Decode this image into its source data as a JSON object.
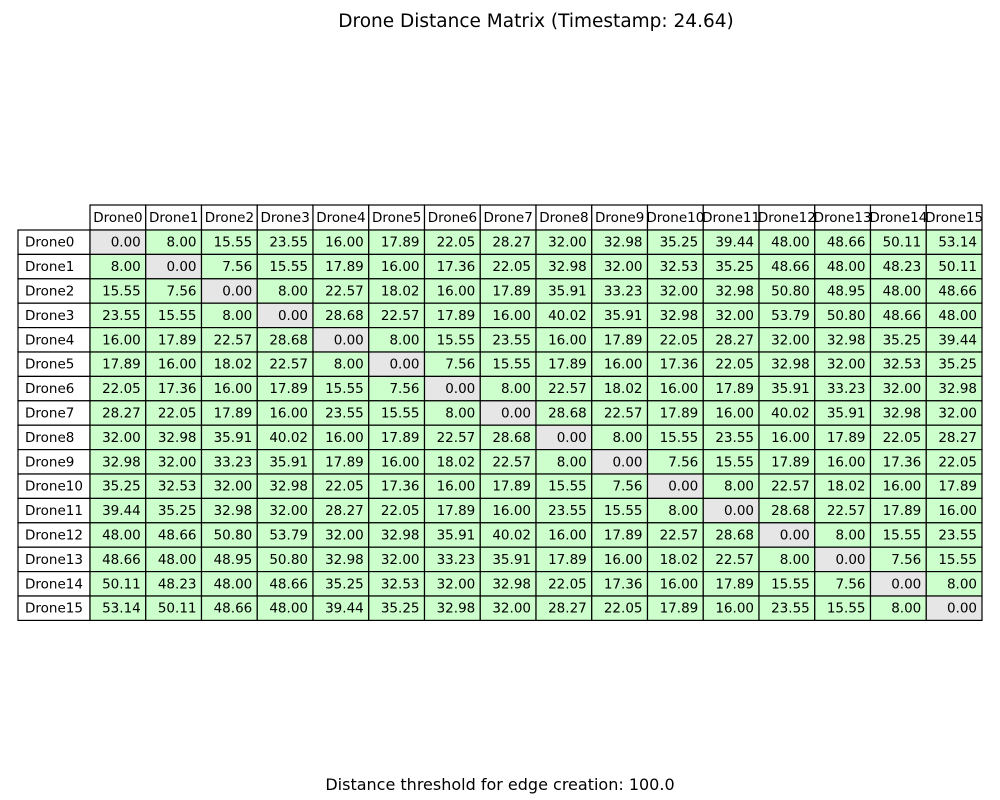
{
  "title": "Drone Distance Matrix (Timestamp: 24.64)",
  "footer": "Distance threshold for edge creation: 100.0",
  "colors": {
    "diagonal_cell": "#e6e6e6",
    "offdiag_cell": "#ccffcc",
    "header_cell": "#ffffff",
    "border": "#000000"
  },
  "chart_data": {
    "type": "table",
    "row_labels": [
      "Drone0",
      "Drone1",
      "Drone2",
      "Drone3",
      "Drone4",
      "Drone5",
      "Drone6",
      "Drone7",
      "Drone8",
      "Drone9",
      "Drone10",
      "Drone11",
      "Drone12",
      "Drone13",
      "Drone14",
      "Drone15"
    ],
    "col_labels": [
      "Drone0",
      "Drone1",
      "Drone2",
      "Drone3",
      "Drone4",
      "Drone5",
      "Drone6",
      "Drone7",
      "Drone8",
      "Drone9",
      "Drone10",
      "Drone11",
      "Drone12",
      "Drone13",
      "Drone14",
      "Drone15"
    ],
    "cells": [
      [
        "0.00",
        "8.00",
        "15.55",
        "23.55",
        "16.00",
        "17.89",
        "22.05",
        "28.27",
        "32.00",
        "32.98",
        "35.25",
        "39.44",
        "48.00",
        "48.66",
        "50.11",
        "53.14"
      ],
      [
        "8.00",
        "0.00",
        "7.56",
        "15.55",
        "17.89",
        "16.00",
        "17.36",
        "22.05",
        "32.98",
        "32.00",
        "32.53",
        "35.25",
        "48.66",
        "48.00",
        "48.23",
        "50.11"
      ],
      [
        "15.55",
        "7.56",
        "0.00",
        "8.00",
        "22.57",
        "18.02",
        "16.00",
        "17.89",
        "35.91",
        "33.23",
        "32.00",
        "32.98",
        "50.80",
        "48.95",
        "48.00",
        "48.66"
      ],
      [
        "23.55",
        "15.55",
        "8.00",
        "0.00",
        "28.68",
        "22.57",
        "17.89",
        "16.00",
        "40.02",
        "35.91",
        "32.98",
        "32.00",
        "53.79",
        "50.80",
        "48.66",
        "48.00"
      ],
      [
        "16.00",
        "17.89",
        "22.57",
        "28.68",
        "0.00",
        "8.00",
        "15.55",
        "23.55",
        "16.00",
        "17.89",
        "22.05",
        "28.27",
        "32.00",
        "32.98",
        "35.25",
        "39.44"
      ],
      [
        "17.89",
        "16.00",
        "18.02",
        "22.57",
        "8.00",
        "0.00",
        "7.56",
        "15.55",
        "17.89",
        "16.00",
        "17.36",
        "22.05",
        "32.98",
        "32.00",
        "32.53",
        "35.25"
      ],
      [
        "22.05",
        "17.36",
        "16.00",
        "17.89",
        "15.55",
        "7.56",
        "0.00",
        "8.00",
        "22.57",
        "18.02",
        "16.00",
        "17.89",
        "35.91",
        "33.23",
        "32.00",
        "32.98"
      ],
      [
        "28.27",
        "22.05",
        "17.89",
        "16.00",
        "23.55",
        "15.55",
        "8.00",
        "0.00",
        "28.68",
        "22.57",
        "17.89",
        "16.00",
        "40.02",
        "35.91",
        "32.98",
        "32.00"
      ],
      [
        "32.00",
        "32.98",
        "35.91",
        "40.02",
        "16.00",
        "17.89",
        "22.57",
        "28.68",
        "0.00",
        "8.00",
        "15.55",
        "23.55",
        "16.00",
        "17.89",
        "22.05",
        "28.27"
      ],
      [
        "32.98",
        "32.00",
        "33.23",
        "35.91",
        "17.89",
        "16.00",
        "18.02",
        "22.57",
        "8.00",
        "0.00",
        "7.56",
        "15.55",
        "17.89",
        "16.00",
        "17.36",
        "22.05"
      ],
      [
        "35.25",
        "32.53",
        "32.00",
        "32.98",
        "22.05",
        "17.36",
        "16.00",
        "17.89",
        "15.55",
        "7.56",
        "0.00",
        "8.00",
        "22.57",
        "18.02",
        "16.00",
        "17.89"
      ],
      [
        "39.44",
        "35.25",
        "32.98",
        "32.00",
        "28.27",
        "22.05",
        "17.89",
        "16.00",
        "23.55",
        "15.55",
        "8.00",
        "0.00",
        "28.68",
        "22.57",
        "17.89",
        "16.00"
      ],
      [
        "48.00",
        "48.66",
        "50.80",
        "53.79",
        "32.00",
        "32.98",
        "35.91",
        "40.02",
        "16.00",
        "17.89",
        "22.57",
        "28.68",
        "0.00",
        "8.00",
        "15.55",
        "23.55"
      ],
      [
        "48.66",
        "48.00",
        "48.95",
        "50.80",
        "32.98",
        "32.00",
        "33.23",
        "35.91",
        "17.89",
        "16.00",
        "18.02",
        "22.57",
        "8.00",
        "0.00",
        "7.56",
        "15.55"
      ],
      [
        "50.11",
        "48.23",
        "48.00",
        "48.66",
        "35.25",
        "32.53",
        "32.00",
        "32.98",
        "22.05",
        "17.36",
        "16.00",
        "17.89",
        "15.55",
        "7.56",
        "0.00",
        "8.00"
      ],
      [
        "53.14",
        "50.11",
        "48.66",
        "48.00",
        "39.44",
        "35.25",
        "32.98",
        "32.00",
        "28.27",
        "22.05",
        "17.89",
        "16.00",
        "23.55",
        "15.55",
        "8.00",
        "0.00"
      ]
    ]
  }
}
